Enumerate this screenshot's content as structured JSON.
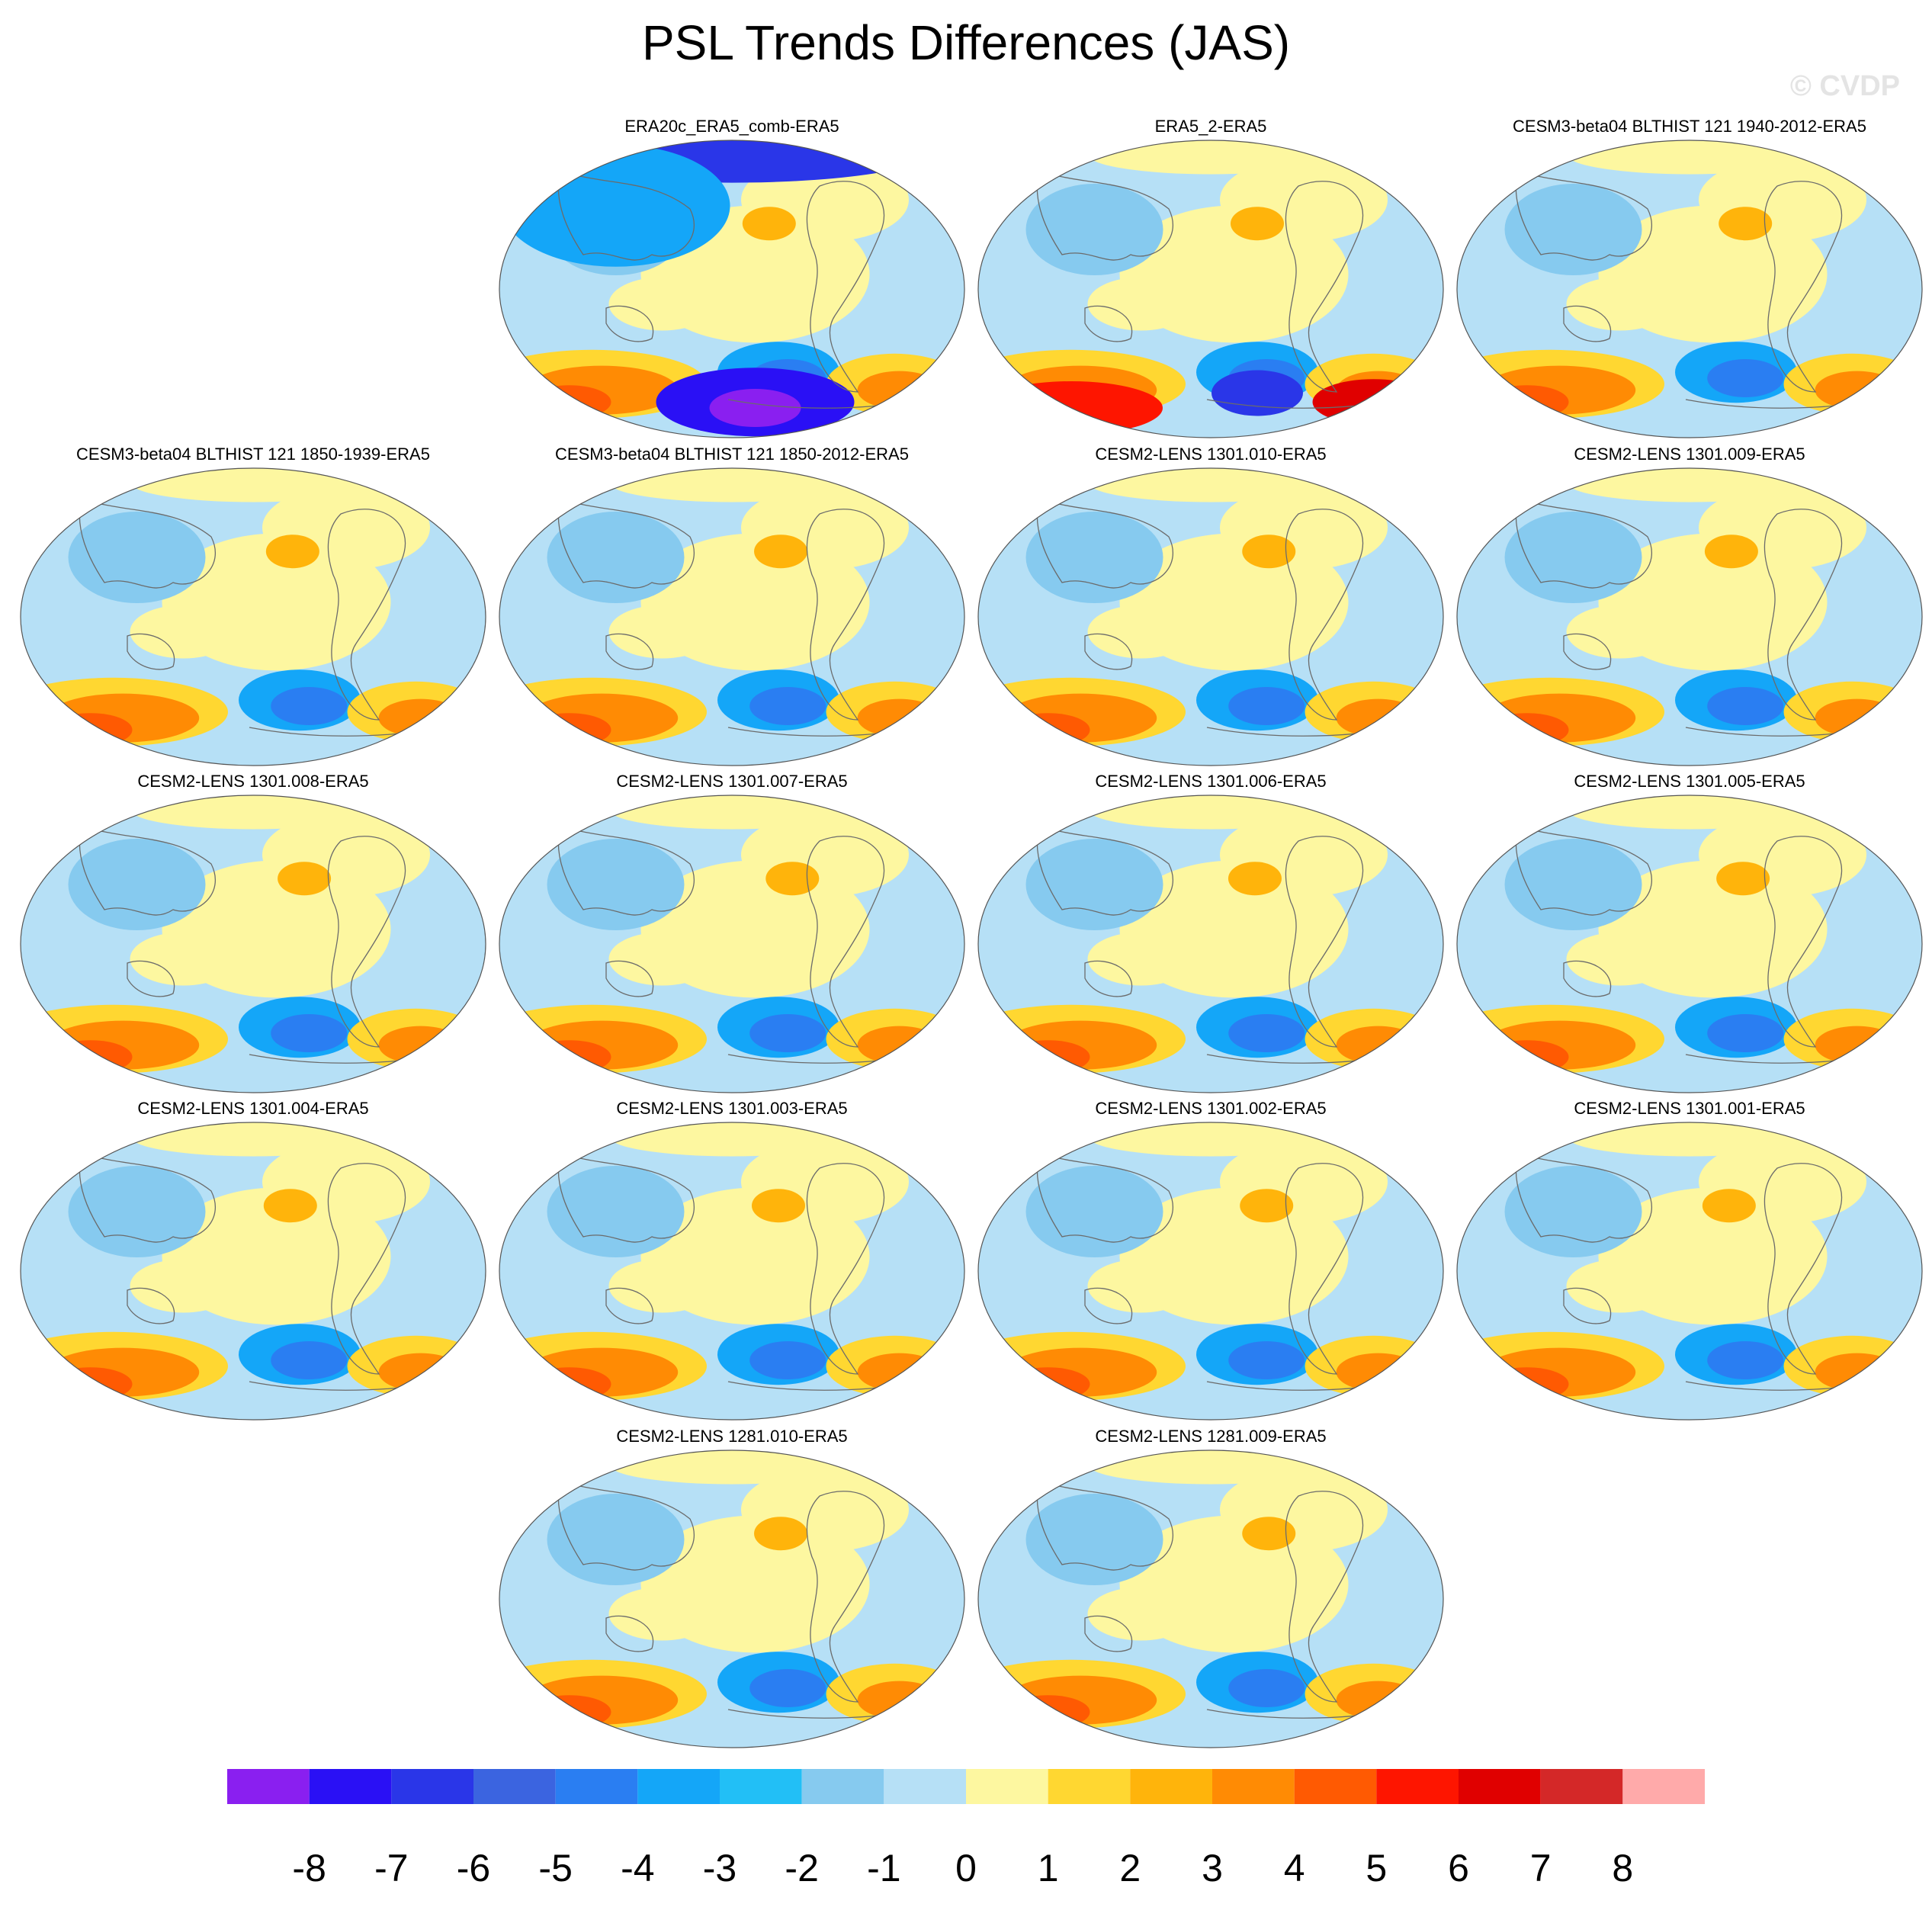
{
  "title": "PSL Trends Differences (JAS)",
  "watermark": "© CVDP",
  "chart_data": {
    "type": "map-panels",
    "variable": "PSL",
    "season": "JAS",
    "projection": "robinson",
    "panels": [
      {
        "label": "ERA20c_ERA5_comb-ERA5"
      },
      {
        "label": "ERA5_2-ERA5"
      },
      {
        "label": "CESM3-beta04 BLTHIST 121 1940-2012-ERA5"
      },
      {
        "label": "CESM3-beta04 BLTHIST 121 1850-1939-ERA5"
      },
      {
        "label": "CESM3-beta04 BLTHIST 121 1850-2012-ERA5"
      },
      {
        "label": "CESM2-LENS 1301.010-ERA5"
      },
      {
        "label": "CESM2-LENS 1301.009-ERA5"
      },
      {
        "label": "CESM2-LENS 1301.008-ERA5"
      },
      {
        "label": "CESM2-LENS 1301.007-ERA5"
      },
      {
        "label": "CESM2-LENS 1301.006-ERA5"
      },
      {
        "label": "CESM2-LENS 1301.005-ERA5"
      },
      {
        "label": "CESM2-LENS 1301.004-ERA5"
      },
      {
        "label": "CESM2-LENS 1301.003-ERA5"
      },
      {
        "label": "CESM2-LENS 1301.002-ERA5"
      },
      {
        "label": "CESM2-LENS 1301.001-ERA5"
      },
      {
        "label": "CESM2-LENS 1281.010-ERA5"
      },
      {
        "label": "CESM2-LENS 1281.009-ERA5"
      }
    ],
    "colorbar": {
      "labels": [
        "-8",
        "-7",
        "-6",
        "-5",
        "-4",
        "-3",
        "-2",
        "-1",
        "0",
        "1",
        "2",
        "3",
        "4",
        "5",
        "6",
        "7",
        "8"
      ],
      "colors": [
        "#8a1ff0",
        "#2a10f5",
        "#2a36e8",
        "#3b64e0",
        "#2a7ef2",
        "#14a6f8",
        "#22bff6",
        "#86caef",
        "#b6e0f6",
        "#fdf7a0",
        "#ffd731",
        "#ffb40b",
        "#ff8b04",
        "#ff5a02",
        "#fe1500",
        "#e00000",
        "#d42828",
        "#ffaaaa"
      ]
    }
  }
}
